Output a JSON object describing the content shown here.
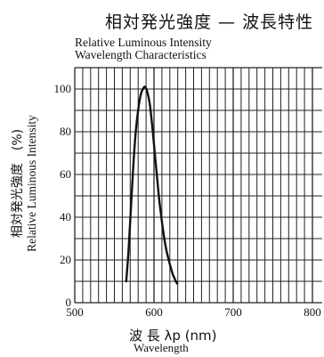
{
  "chart_data": {
    "type": "line",
    "title": "相対発光強度 — 波長特性",
    "title_en_line1": "Relative Luminous Intensity",
    "title_en_line2": "Wavelength Characteristics",
    "xlabel": "波 長 λp (nm)",
    "xlabel_en": "Wavelength",
    "ylabel": "相対発光強度　(%)",
    "ylabel_en": "Relative Luminous Intensity",
    "xlim": [
      500,
      800
    ],
    "ylim": [
      0,
      110
    ],
    "x_ticks": [
      500,
      600,
      700,
      800
    ],
    "y_ticks": [
      0,
      20,
      40,
      60,
      80,
      100
    ],
    "grid": true,
    "line_color": "#111111",
    "series": [
      {
        "x": [
          565,
          568,
          571,
          574,
          577,
          580,
          583,
          586,
          589,
          592,
          595,
          598,
          601,
          604,
          607,
          610,
          613,
          616,
          620,
          624,
          629
        ],
        "y": [
          10,
          25,
          45,
          65,
          80,
          90,
          97,
          100,
          101,
          98,
          92,
          82,
          70,
          58,
          47,
          38,
          30,
          24,
          18,
          13,
          9
        ]
      }
    ]
  }
}
